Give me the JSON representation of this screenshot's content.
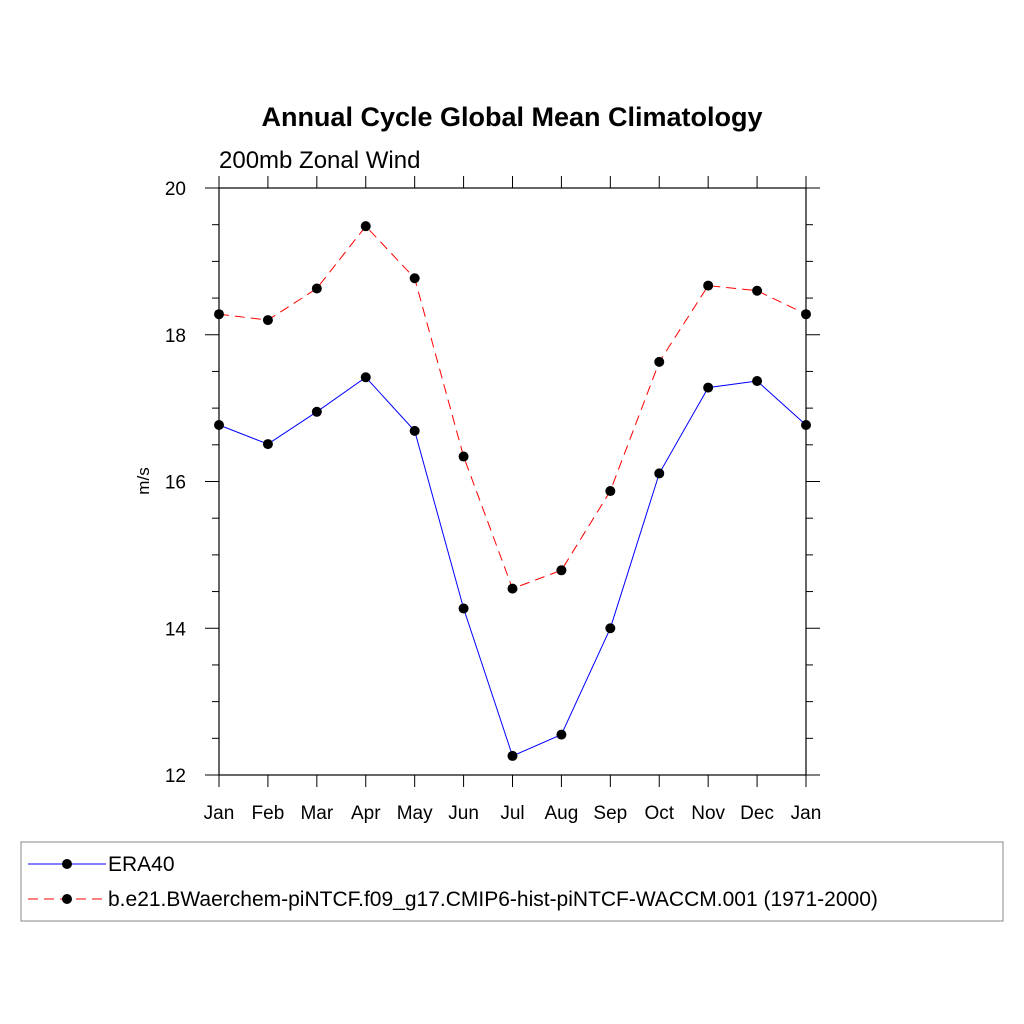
{
  "chart_data": {
    "type": "line",
    "title": "Annual Cycle Global Mean Climatology",
    "subtitle": "200mb Zonal Wind",
    "xlabel": "",
    "ylabel": "m/s",
    "categories": [
      "Jan",
      "Feb",
      "Mar",
      "Apr",
      "May",
      "Jun",
      "Jul",
      "Aug",
      "Sep",
      "Oct",
      "Nov",
      "Dec",
      "Jan"
    ],
    "ylim": [
      12,
      20
    ],
    "yticks": [
      "12",
      "14",
      "16",
      "18",
      "20"
    ],
    "grid": false,
    "legend_placement": "bottom",
    "series": [
      {
        "name": "ERA40",
        "color": "#0000ff",
        "line_style": "solid",
        "marker": "filled-circle",
        "values": [
          16.77,
          16.51,
          16.95,
          17.42,
          16.69,
          14.27,
          12.26,
          12.55,
          14.0,
          16.11,
          17.28,
          17.37,
          16.77
        ]
      },
      {
        "name": "b.e21.BWaerchem-piNTCF.f09_g17.CMIP6-hist-piNTCF-WACCM.001 (1971-2000)",
        "color": "#ff0000",
        "line_style": "dashed",
        "marker": "filled-circle",
        "values": [
          18.28,
          18.2,
          18.63,
          19.48,
          18.77,
          16.34,
          14.54,
          14.79,
          15.87,
          17.63,
          18.67,
          18.6,
          18.28
        ]
      }
    ]
  }
}
